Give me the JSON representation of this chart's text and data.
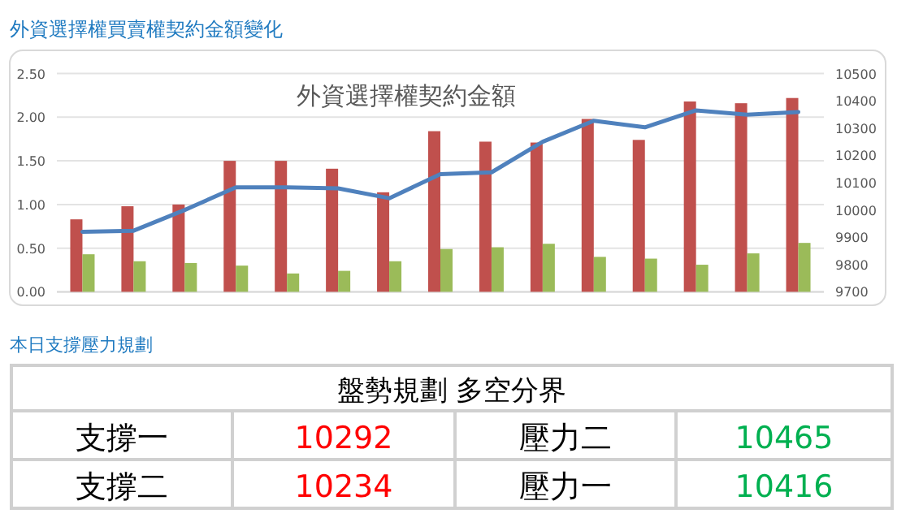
{
  "chart_data": {
    "type": "bar",
    "title": "外資選擇權買賣權契約金額變化",
    "subtitle": "外資選擇權契約金額",
    "categories": [
      null,
      null,
      null,
      null,
      null,
      null,
      null,
      null,
      null,
      null,
      null,
      null,
      null,
      null,
      null
    ],
    "series": [
      {
        "color": "#c0504d",
        "values": [
          0.83,
          0.98,
          1.0,
          1.5,
          1.5,
          1.41,
          1.14,
          1.84,
          1.72,
          1.71,
          1.98,
          1.74,
          2.18,
          2.16,
          2.22
        ]
      },
      {
        "color": "#9bbb59",
        "values": [
          0.43,
          0.35,
          0.33,
          0.3,
          0.21,
          0.24,
          0.35,
          0.49,
          0.51,
          0.55,
          0.4,
          0.38,
          0.31,
          0.44,
          0.56
        ]
      },
      {
        "type": "line",
        "axis": "y2",
        "color": "#4f81bd",
        "values": [
          9920,
          9924,
          10000,
          10083,
          10083,
          10079,
          10043,
          10131,
          10138,
          10250,
          10327,
          10303,
          10365,
          10349,
          10359
        ]
      }
    ],
    "ylim": [
      0,
      2.5
    ],
    "yticks": [
      {
        "value": 0,
        "label": "0.00"
      },
      {
        "value": 0.5,
        "label": "0.50"
      },
      {
        "value": 1,
        "label": "1.00"
      },
      {
        "value": 1.5,
        "label": "1.50"
      },
      {
        "value": 2,
        "label": "2.00"
      },
      {
        "value": 2.5,
        "label": "2.50"
      }
    ],
    "y2lim": [
      9700,
      10500
    ],
    "y2ticks": [
      9700,
      9800,
      9900,
      10000,
      10100,
      10200,
      10300,
      10400,
      10500
    ],
    "grid": "y",
    "marker": "none",
    "annotations": [
      "本日支撐壓力規劃",
      "盤勢規劃 多空分界",
      "支撐一",
      "10292",
      "壓力二",
      "10465",
      "支撐二",
      "10234",
      "壓力一",
      "10416"
    ]
  }
}
